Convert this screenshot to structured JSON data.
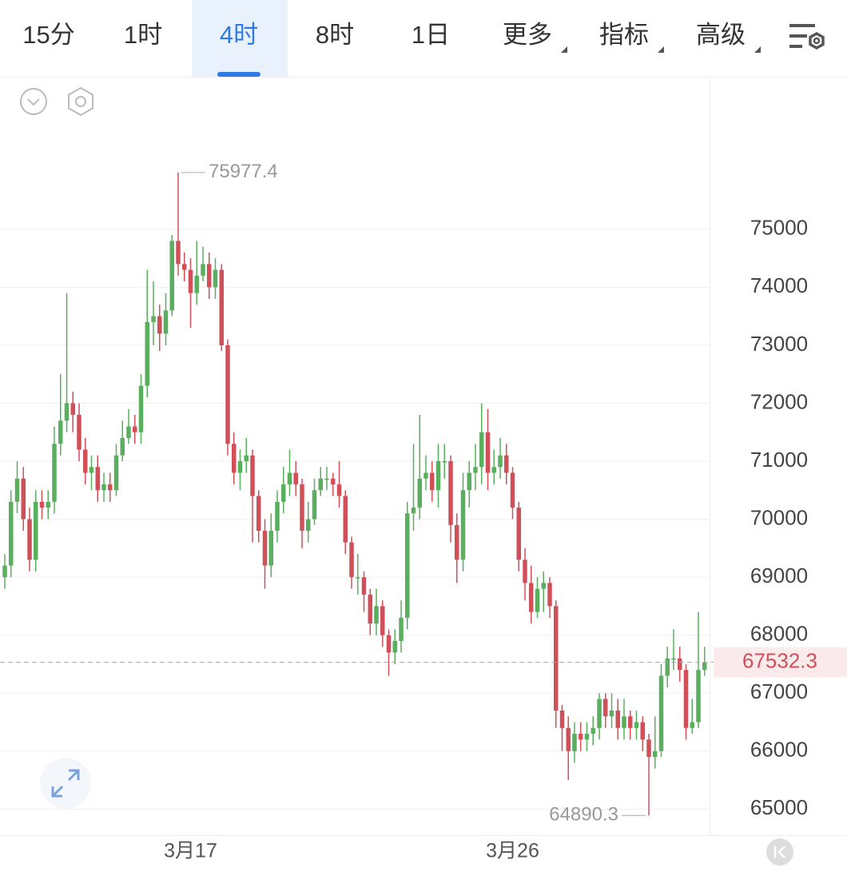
{
  "tabs": [
    "15分",
    "1时",
    "4时",
    "8时",
    "1日",
    "更多",
    "指标",
    "高级"
  ],
  "active_tab": 2,
  "chart_data": {
    "type": "candlestick",
    "categories": [
      null,
      null,
      null,
      null,
      null,
      null,
      null,
      null,
      null,
      null,
      null,
      null,
      null,
      null,
      null,
      null,
      null,
      null,
      null,
      null,
      null,
      null,
      null,
      null,
      null,
      null,
      null,
      null,
      null,
      null,
      "3月17",
      null,
      null,
      null,
      null,
      null,
      null,
      null,
      null,
      null,
      null,
      null,
      null,
      null,
      null,
      null,
      null,
      null,
      null,
      null,
      null,
      null,
      null,
      null,
      null,
      null,
      null,
      null,
      null,
      null,
      null,
      null,
      null,
      null,
      null,
      null,
      null,
      null,
      null,
      null,
      null,
      null,
      null,
      null,
      null,
      null,
      null,
      null,
      null,
      null,
      null,
      null,
      "3月26",
      null,
      null,
      null,
      null,
      null,
      null,
      null,
      null,
      null,
      null,
      null,
      null,
      null,
      null,
      null,
      null,
      null,
      null,
      null,
      null,
      null,
      null,
      null,
      null,
      null,
      null,
      null,
      null,
      null,
      null,
      null
    ],
    "open": [
      69000,
      69200,
      70300,
      70700,
      70000,
      69300,
      70300,
      70200,
      70300,
      71300,
      71700,
      72000,
      71800,
      71200,
      70800,
      70900,
      70500,
      70600,
      70500,
      71100,
      71400,
      71600,
      71500,
      72300,
      73400,
      73500,
      73200,
      73600,
      74800,
      74400,
      74300,
      73900,
      74200,
      74400,
      74000,
      74300,
      73000,
      71300,
      70800,
      71000,
      71100,
      70400,
      69800,
      69200,
      69800,
      70300,
      70600,
      70800,
      70600,
      69800,
      70000,
      70500,
      70700,
      70700,
      70600,
      70400,
      69600,
      69000,
      69000,
      68700,
      68200,
      68500,
      68000,
      67700,
      67900,
      68300,
      70100,
      70200,
      70700,
      70800,
      70500,
      71000,
      71000,
      69900,
      69300,
      70500,
      70800,
      70900,
      71500,
      70800,
      70900,
      71100,
      70800,
      70200,
      69300,
      68900,
      68400,
      68800,
      68900,
      68500,
      66700,
      66400,
      66000,
      66300,
      66200,
      66300,
      66400,
      66900,
      66600,
      66700,
      66400,
      66600,
      66400,
      66500,
      66200,
      65900,
      66000,
      67300,
      67600,
      67600,
      67400,
      66400,
      66500,
      67400
    ],
    "high": [
      69400,
      70500,
      71000,
      70900,
      70200,
      70500,
      70500,
      70500,
      71600,
      72500,
      73900,
      72200,
      72000,
      71400,
      71100,
      71100,
      70800,
      70800,
      71300,
      71700,
      71900,
      71800,
      72500,
      74300,
      74100,
      73700,
      73900,
      74900,
      75977.4,
      74600,
      74500,
      74800,
      74700,
      74600,
      74500,
      74400,
      73100,
      71500,
      71200,
      71400,
      71200,
      70500,
      70000,
      70100,
      70500,
      70900,
      71200,
      71000,
      70700,
      70300,
      70700,
      70900,
      70900,
      70800,
      71000,
      70500,
      69700,
      69400,
      69100,
      68800,
      68800,
      68600,
      68100,
      68100,
      68600,
      70300,
      71300,
      71800,
      71100,
      71000,
      71300,
      71300,
      71100,
      70100,
      70800,
      71000,
      71300,
      72000,
      71900,
      71200,
      71400,
      71300,
      70900,
      70300,
      69500,
      69200,
      69000,
      69100,
      69000,
      68600,
      66800,
      66600,
      66500,
      66500,
      66500,
      66600,
      67000,
      67000,
      67000,
      66900,
      66900,
      66700,
      66700,
      66600,
      66300,
      66600,
      67500,
      67800,
      68100,
      67800,
      67500,
      66900,
      68400,
      67800
    ],
    "low": [
      68800,
      69000,
      70100,
      69800,
      69100,
      69100,
      70000,
      70000,
      70100,
      71100,
      71500,
      71500,
      71000,
      70600,
      70500,
      70300,
      70300,
      70300,
      70400,
      71000,
      71300,
      71300,
      71300,
      72100,
      73000,
      72900,
      73000,
      73500,
      74200,
      74100,
      73300,
      73700,
      74100,
      73800,
      73800,
      72900,
      71100,
      70600,
      70500,
      70800,
      69600,
      69600,
      68800,
      69000,
      69600,
      70100,
      70400,
      70400,
      69500,
      69600,
      69900,
      70400,
      70500,
      70400,
      70200,
      69400,
      68800,
      68700,
      68400,
      68000,
      68000,
      67800,
      67300,
      67500,
      67700,
      68100,
      69800,
      70000,
      70500,
      70300,
      70200,
      70700,
      69600,
      68900,
      69100,
      70200,
      70500,
      70600,
      70500,
      70600,
      70700,
      70600,
      70000,
      69100,
      68600,
      68200,
      68300,
      68400,
      68300,
      66400,
      66000,
      65500,
      65800,
      66000,
      66000,
      66100,
      66200,
      66400,
      66400,
      66200,
      66200,
      66200,
      66200,
      66000,
      64890.3,
      65700,
      65900,
      67100,
      67400,
      67200,
      66200,
      66300,
      66400,
      67300
    ],
    "close": [
      69200,
      70300,
      70700,
      70000,
      69300,
      70300,
      70200,
      70300,
      71300,
      71700,
      72000,
      71800,
      71200,
      70800,
      70900,
      70500,
      70600,
      70500,
      71100,
      71400,
      71600,
      71500,
      72300,
      73400,
      73500,
      73200,
      73600,
      74800,
      74400,
      74300,
      73900,
      74200,
      74400,
      74000,
      74300,
      73000,
      71300,
      70800,
      71000,
      71100,
      70400,
      69800,
      69200,
      69800,
      70300,
      70600,
      70800,
      70600,
      69800,
      70000,
      70500,
      70700,
      70700,
      70600,
      70400,
      69600,
      69000,
      69000,
      68700,
      68200,
      68500,
      68000,
      67700,
      67900,
      68300,
      70100,
      70200,
      70700,
      70800,
      70500,
      71000,
      71000,
      69900,
      69300,
      70500,
      70800,
      70900,
      71500,
      70800,
      70900,
      71100,
      70800,
      70200,
      69300,
      68900,
      68400,
      68800,
      68900,
      68500,
      66700,
      66400,
      66000,
      66300,
      66200,
      66300,
      66400,
      66900,
      66600,
      66700,
      66400,
      66600,
      66400,
      66500,
      66200,
      65900,
      66000,
      67300,
      67600,
      67600,
      67400,
      66400,
      66500,
      67400,
      67532.3
    ],
    "ylim": [
      64550,
      77630
    ],
    "yticks": [
      65000,
      66000,
      67000,
      68000,
      69000,
      70000,
      71000,
      72000,
      73000,
      74000,
      75000
    ],
    "grid": true,
    "up_color": "#5aaf5e",
    "down_color": "#d0505a"
  }
}
